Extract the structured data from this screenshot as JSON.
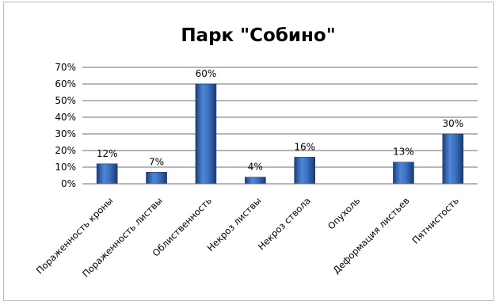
{
  "chart_data": {
    "type": "bar",
    "title": "Парк \"Собино\"",
    "xlabel": "",
    "ylabel": "",
    "ylim": [
      0,
      70
    ],
    "yticks": [
      "0%",
      "10%",
      "20%",
      "30%",
      "40%",
      "50%",
      "60%",
      "70%"
    ],
    "categories": [
      "Пораженность кроны",
      "Пораженность листвы",
      "Облиственность",
      "Некроз листвы",
      "Некроз ствола",
      "Опухоль",
      "Деформация листьев",
      "Пятнистость"
    ],
    "values": [
      12,
      7,
      60,
      4,
      16,
      0,
      13,
      30
    ],
    "data_labels": [
      "12%",
      "7%",
      "60%",
      "4%",
      "16%",
      "",
      "13%",
      "30%"
    ],
    "grid": true,
    "legend": "none",
    "bar_color": "#2f63b5"
  }
}
